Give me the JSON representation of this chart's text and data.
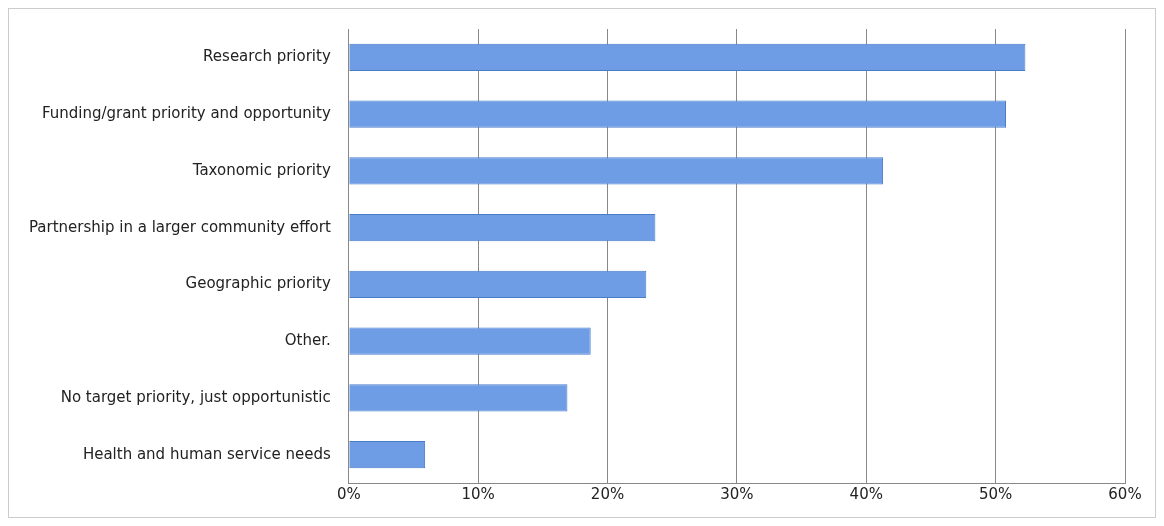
{
  "chart_data": {
    "type": "bar",
    "orientation": "horizontal",
    "categories": [
      "Research priority",
      "Funding/grant priority and opportunity",
      "Taxonomic priority",
      "Partnership in a larger community effort",
      "Geographic priority",
      "Other.",
      "No target priority, just opportunistic",
      "Health and human service needs"
    ],
    "values": [
      52.3,
      50.8,
      41.3,
      23.7,
      23.0,
      18.7,
      16.9,
      5.9
    ],
    "color": "#6e9de6",
    "xlim": [
      0,
      60
    ],
    "xticks": [
      {
        "value": 0,
        "label": "0%"
      },
      {
        "value": 10,
        "label": "10%"
      },
      {
        "value": 20,
        "label": "20%"
      },
      {
        "value": 30,
        "label": "30%"
      },
      {
        "value": 40,
        "label": "40%"
      },
      {
        "value": 50,
        "label": "50%"
      },
      {
        "value": 60,
        "label": "60%"
      }
    ],
    "grid": "x",
    "legend": false
  }
}
